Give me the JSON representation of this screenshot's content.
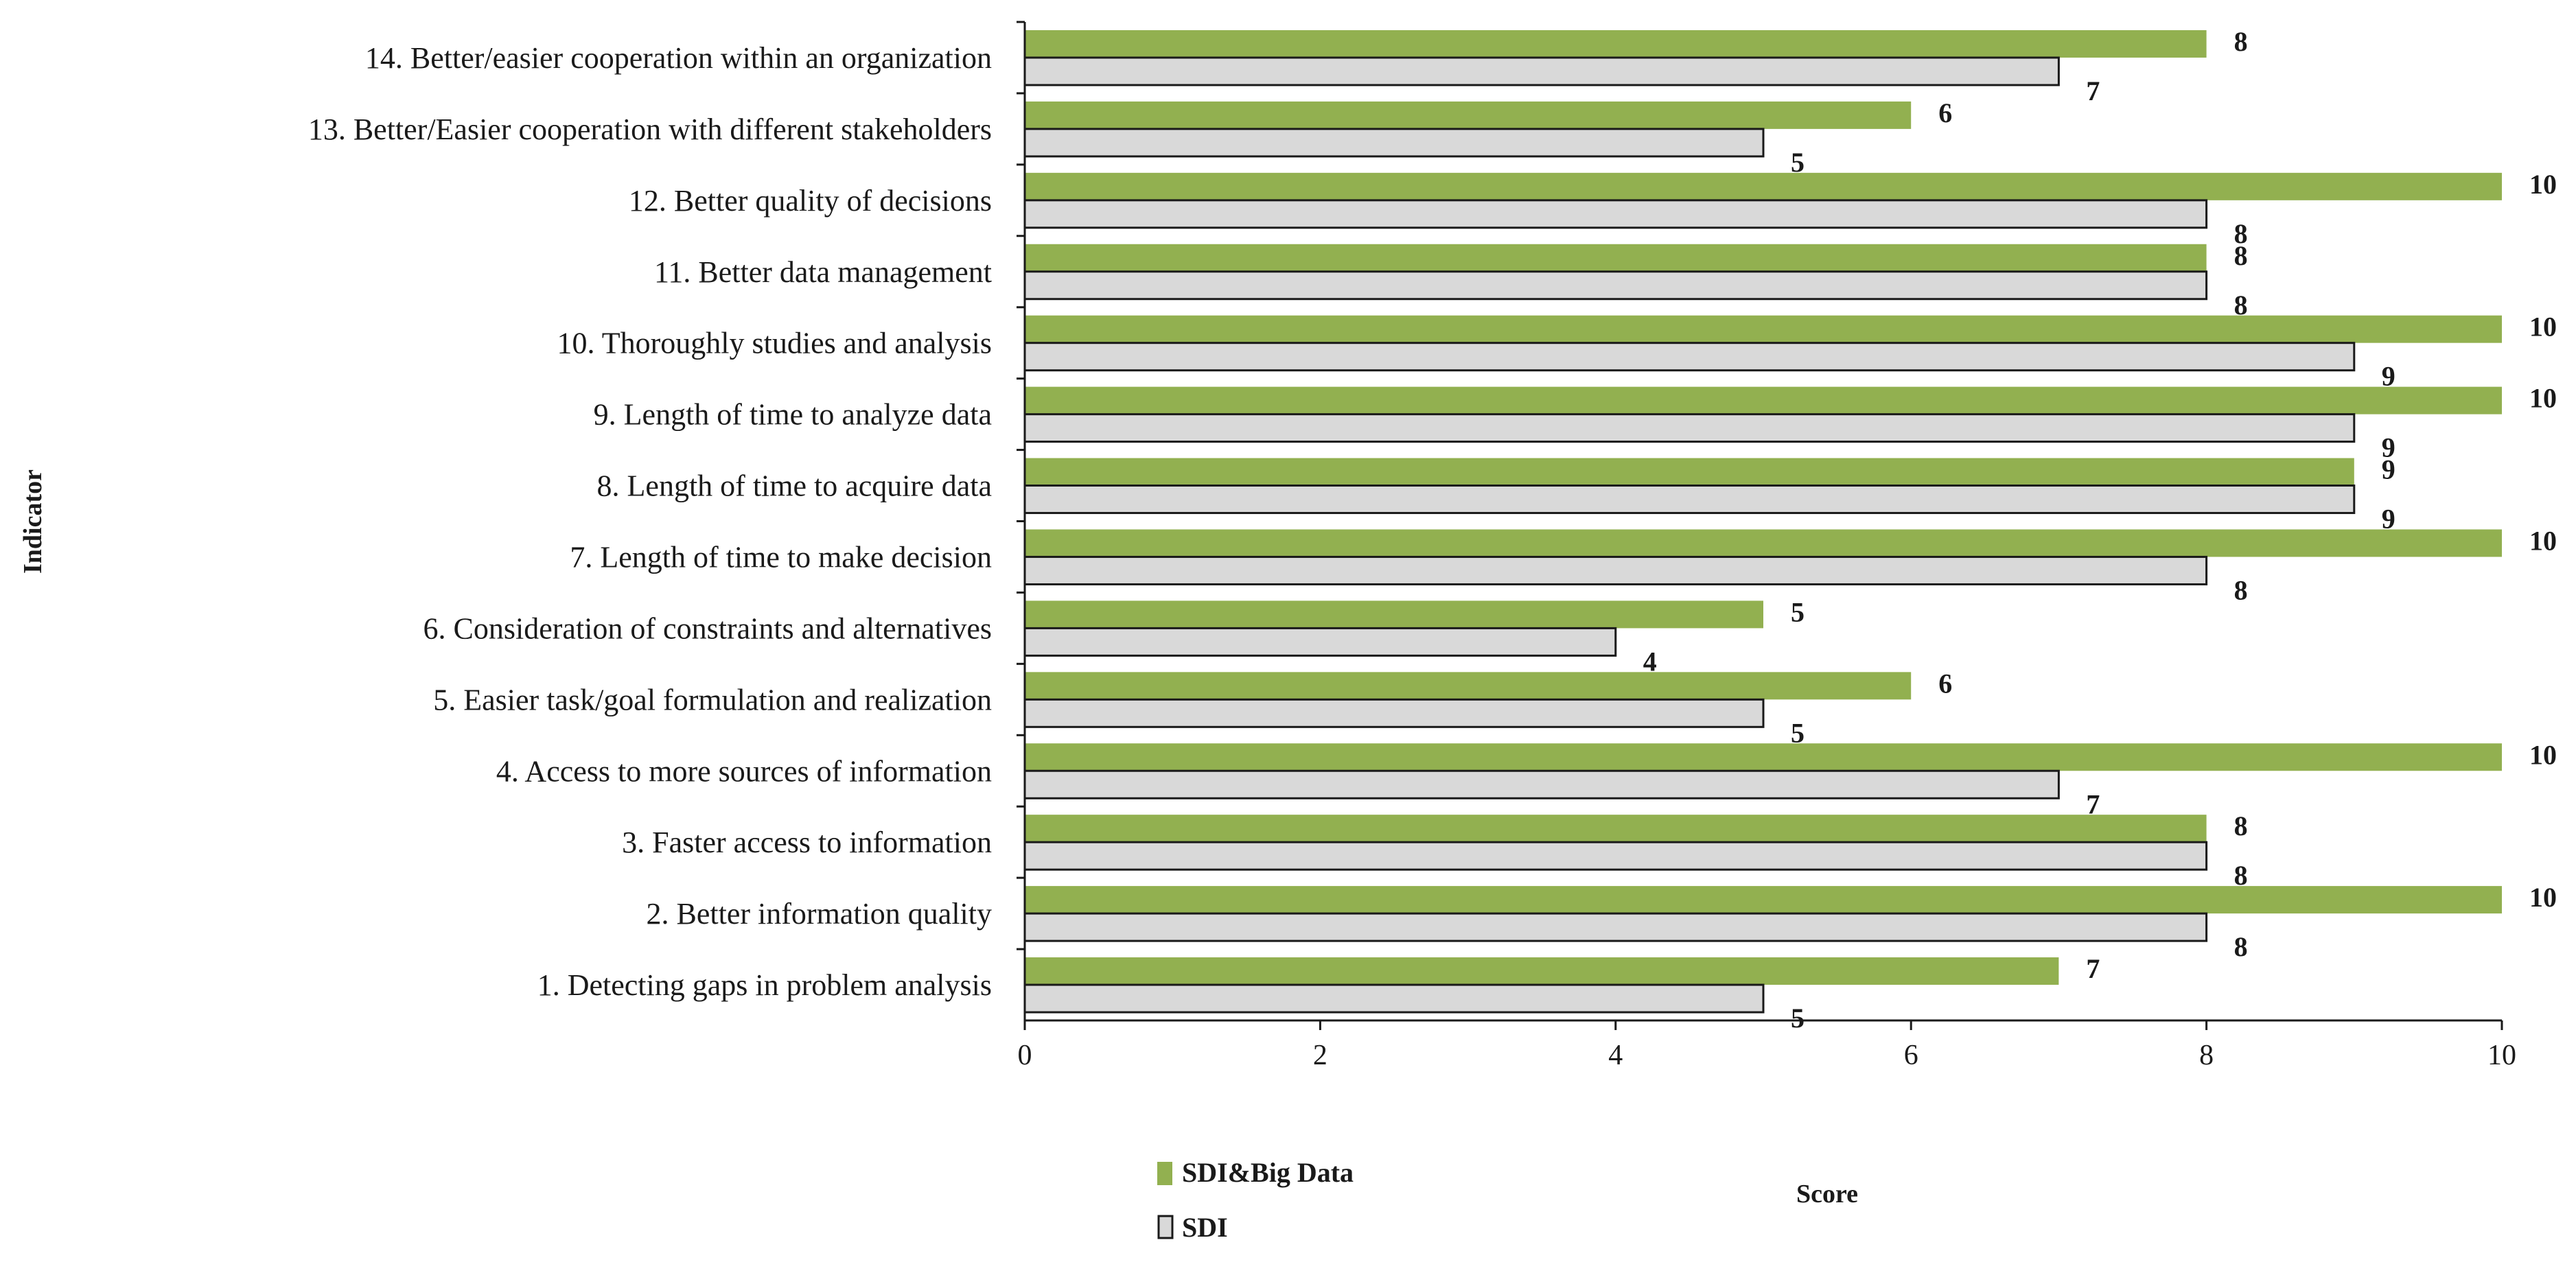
{
  "chart_data": {
    "type": "bar",
    "orientation": "horizontal",
    "title": "",
    "xlabel": "Score",
    "ylabel": "Indicator",
    "xlim": [
      0,
      10
    ],
    "xticks": [
      0,
      2,
      4,
      6,
      8,
      10
    ],
    "grid": false,
    "legend_position": "bottom-left",
    "categories": [
      "1. Detecting gaps in problem analysis",
      "2. Better information quality",
      "3. Faster access to information",
      "4. Access to more sources of information",
      "5. Easier task/goal formulation and realization",
      "6. Consideration of constraints and alternatives",
      "7. Length of time to make decision",
      "8. Length of time to acquire data",
      "9. Length of time to analyze data",
      "10. Thoroughly studies and analysis",
      "11. Better data management",
      "12. Better quality of decisions",
      "13. Better/Easier  cooperation with different stakeholders",
      "14. Better/easier cooperation within an organization"
    ],
    "series": [
      {
        "name": "SDI&Big Data",
        "color": "#92B050",
        "values": [
          7,
          10,
          8,
          10,
          6,
          5,
          10,
          9,
          10,
          10,
          8,
          10,
          6,
          8
        ]
      },
      {
        "name": "SDI",
        "color": "#D9D9D9",
        "values": [
          5,
          8,
          8,
          7,
          5,
          4,
          8,
          9,
          9,
          9,
          8,
          8,
          5,
          7
        ]
      }
    ]
  }
}
